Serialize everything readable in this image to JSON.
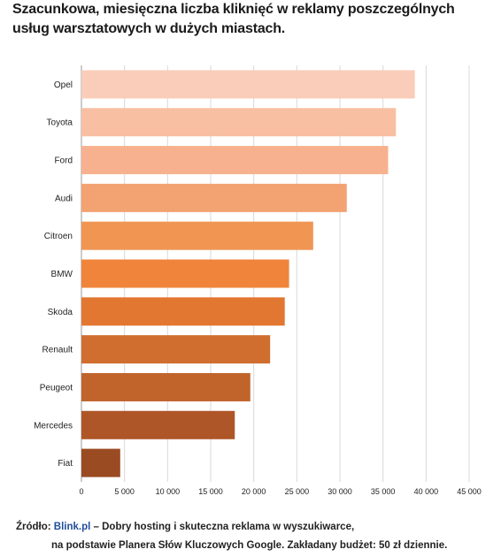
{
  "title": "Szacunkowa, miesięczna liczba kliknięć w reklamy poszczególnych  usług warsztatowych  w dużych miastach.",
  "source": {
    "prefix": "Źródło: ",
    "brand": "Blink.pl",
    "line1_rest": " – Dobry hosting i skuteczna reklama w wyszukiwarce,",
    "line2": "na podstawie Planera Słów Kluczowych Google. Zakładany  budżet:  50 zł dziennie."
  },
  "chart_data": {
    "type": "bar",
    "orientation": "horizontal",
    "title": "Szacunkowa, miesięczna liczba kliknięć w reklamy poszczególnych  usług warsztatowych  w dużych miastach.",
    "xlabel": "",
    "ylabel": "",
    "categories": [
      "Opel",
      "Toyota",
      "Ford",
      "Audi",
      "Citroen",
      "BMW",
      "Skoda",
      "Renault",
      "Peugeot",
      "Mercedes",
      "Fiat"
    ],
    "values": [
      38700,
      36500,
      35600,
      30800,
      26900,
      24100,
      23600,
      21900,
      19600,
      17800,
      4500
    ],
    "colors": [
      "#f9cdb9",
      "#f8bfa3",
      "#f7b18e",
      "#f3a271",
      "#f09552",
      "#f0843a",
      "#e27732",
      "#d06e2f",
      "#c0642c",
      "#ae5628",
      "#9a4b22"
    ],
    "xlim": [
      0,
      45000
    ],
    "ticks": [
      0,
      5000,
      10000,
      15000,
      20000,
      25000,
      30000,
      35000,
      40000,
      45000
    ],
    "tick_labels": [
      "0",
      "5 000",
      "10 000",
      "15 000",
      "20 000",
      "25 000",
      "30 000",
      "35 000",
      "40 000",
      "45 000"
    ],
    "grid": "vertical",
    "legend": "none"
  }
}
